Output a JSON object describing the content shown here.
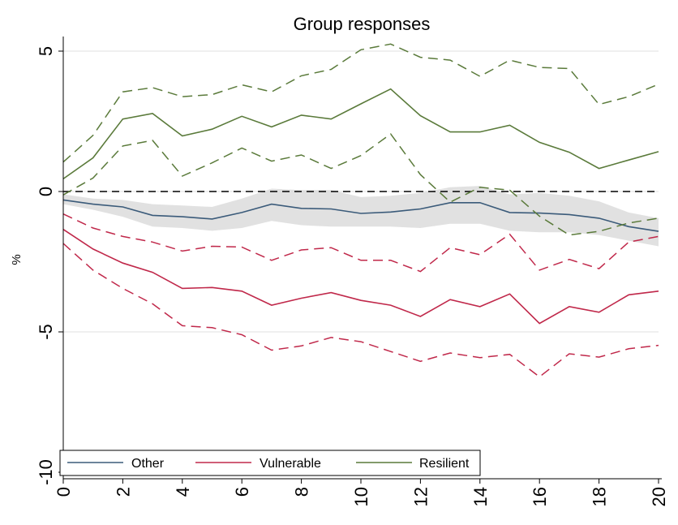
{
  "chart_data": {
    "type": "line",
    "title": "Group responses",
    "xlabel": "",
    "ylabel": "%",
    "x": [
      0,
      1,
      2,
      3,
      4,
      5,
      6,
      7,
      8,
      9,
      10,
      11,
      12,
      13,
      14,
      15,
      16,
      17,
      18,
      19,
      20
    ],
    "xlim": [
      0,
      20
    ],
    "ylim": [
      -10,
      5
    ],
    "xticks": [
      0,
      2,
      4,
      6,
      8,
      10,
      12,
      14,
      16,
      18,
      20
    ],
    "yticks": [
      5,
      0,
      -5,
      -10
    ],
    "grid": true,
    "legend_position": "bottom",
    "zero_line": 0,
    "series": [
      {
        "name": "Other",
        "color": "#3b5b7a",
        "values": [
          -0.3,
          -0.45,
          -0.55,
          -0.85,
          -0.9,
          -0.98,
          -0.75,
          -0.45,
          -0.6,
          -0.62,
          -0.78,
          -0.73,
          -0.62,
          -0.4,
          -0.4,
          -0.75,
          -0.77,
          -0.82,
          -0.95,
          -1.25,
          -1.42
        ],
        "band_lower": [
          -0.45,
          -0.65,
          -0.9,
          -1.25,
          -1.3,
          -1.4,
          -1.3,
          -1.05,
          -1.2,
          -1.25,
          -1.25,
          -1.25,
          -1.3,
          -1.15,
          -1.15,
          -1.4,
          -1.45,
          -1.45,
          -1.55,
          -1.75,
          -1.95
        ],
        "band_upper": [
          -0.1,
          -0.25,
          -0.3,
          -0.45,
          -0.5,
          -0.55,
          -0.25,
          0.1,
          0.05,
          0.05,
          -0.2,
          -0.15,
          -0.05,
          0.15,
          0.2,
          -0.1,
          -0.05,
          -0.15,
          -0.35,
          -0.75,
          -0.95
        ]
      },
      {
        "name": "Vulnerable",
        "color": "#c0284a",
        "values": [
          -1.35,
          -2.05,
          -2.55,
          -2.88,
          -3.45,
          -3.42,
          -3.55,
          -4.05,
          -3.8,
          -3.6,
          -3.88,
          -4.05,
          -4.45,
          -3.85,
          -4.1,
          -3.65,
          -4.7,
          -4.1,
          -4.3,
          -3.68,
          -3.55
        ],
        "ci_lower": [
          -1.85,
          -2.8,
          -3.45,
          -4.0,
          -4.78,
          -4.85,
          -5.1,
          -5.65,
          -5.5,
          -5.2,
          -5.35,
          -5.7,
          -6.05,
          -5.75,
          -5.92,
          -5.8,
          -6.6,
          -5.78,
          -5.9,
          -5.6,
          -5.48
        ],
        "ci_upper": [
          -0.8,
          -1.3,
          -1.6,
          -1.8,
          -2.12,
          -1.95,
          -1.98,
          -2.45,
          -2.08,
          -2.0,
          -2.45,
          -2.45,
          -2.85,
          -2.0,
          -2.25,
          -1.52,
          -2.8,
          -2.42,
          -2.75,
          -1.8,
          -1.6
        ]
      },
      {
        "name": "Resilient",
        "color": "#5a7a3a",
        "values": [
          0.45,
          1.2,
          2.58,
          2.78,
          1.98,
          2.22,
          2.68,
          2.3,
          2.72,
          2.58,
          3.12,
          3.65,
          2.7,
          2.12,
          2.12,
          2.36,
          1.75,
          1.4,
          0.82,
          1.12,
          1.42
        ],
        "ci_lower": [
          -0.12,
          0.48,
          1.62,
          1.82,
          0.55,
          1.02,
          1.55,
          1.08,
          1.3,
          0.82,
          1.28,
          2.05,
          0.6,
          -0.38,
          0.15,
          0.05,
          -0.88,
          -1.55,
          -1.42,
          -1.12,
          -0.95
        ],
        "ci_upper": [
          1.05,
          2.0,
          3.55,
          3.7,
          3.38,
          3.45,
          3.8,
          3.55,
          4.12,
          4.35,
          5.05,
          5.25,
          4.78,
          4.68,
          4.1,
          4.68,
          4.42,
          4.38,
          3.1,
          3.38,
          3.82
        ]
      }
    ]
  }
}
